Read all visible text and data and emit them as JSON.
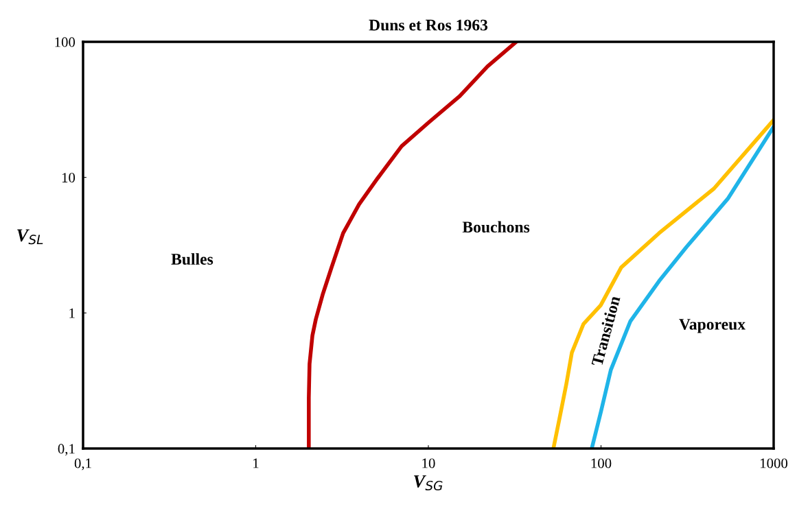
{
  "chart_data": {
    "type": "line",
    "title": "Duns et Ros 1963",
    "xlabel": "V$_{SG}$",
    "ylabel": "V$_{SL}$",
    "log": "xy",
    "grid": false,
    "marker": "none",
    "line_style": "solid",
    "xlim": [
      0.1,
      1000
    ],
    "ylim": [
      0.1,
      100
    ],
    "xticks": [
      {
        "value": 0.1,
        "label": "0,1"
      },
      1,
      10,
      100,
      1000
    ],
    "yticks": [
      {
        "value": 0.1,
        "label": "0,1"
      },
      1,
      10,
      100
    ],
    "series": [
      {
        "color": "#c00000",
        "x": [
          2.03,
          2.03,
          2.05,
          2.13,
          2.23,
          2.44,
          2.75,
          3.21,
          3.97,
          5.08,
          7.0,
          10.1,
          15.2,
          22.0,
          32.3
        ],
        "values": [
          0.1,
          0.237,
          0.42,
          0.68,
          0.9,
          1.36,
          2.17,
          3.88,
          6.33,
          9.85,
          17.0,
          25.6,
          39.8,
          65.8,
          100
        ]
      },
      {
        "color": "#ffc000",
        "x": [
          53,
          57.5,
          63,
          67.8,
          79.2,
          99.6,
          131,
          217,
          451,
          1000
        ],
        "values": [
          0.1,
          0.167,
          0.3,
          0.51,
          0.83,
          1.14,
          2.17,
          3.88,
          8.27,
          26.5
        ]
      },
      {
        "color": "#1fb4e8",
        "x": [
          88.4,
          100,
          114,
          148,
          217,
          313,
          542,
          1000
        ],
        "values": [
          0.1,
          0.188,
          0.38,
          0.87,
          1.72,
          3.07,
          6.95,
          23.6
        ]
      }
    ],
    "annotations": [
      "Bulles",
      "Bouchons",
      "Transition",
      "Vaporeux"
    ]
  }
}
